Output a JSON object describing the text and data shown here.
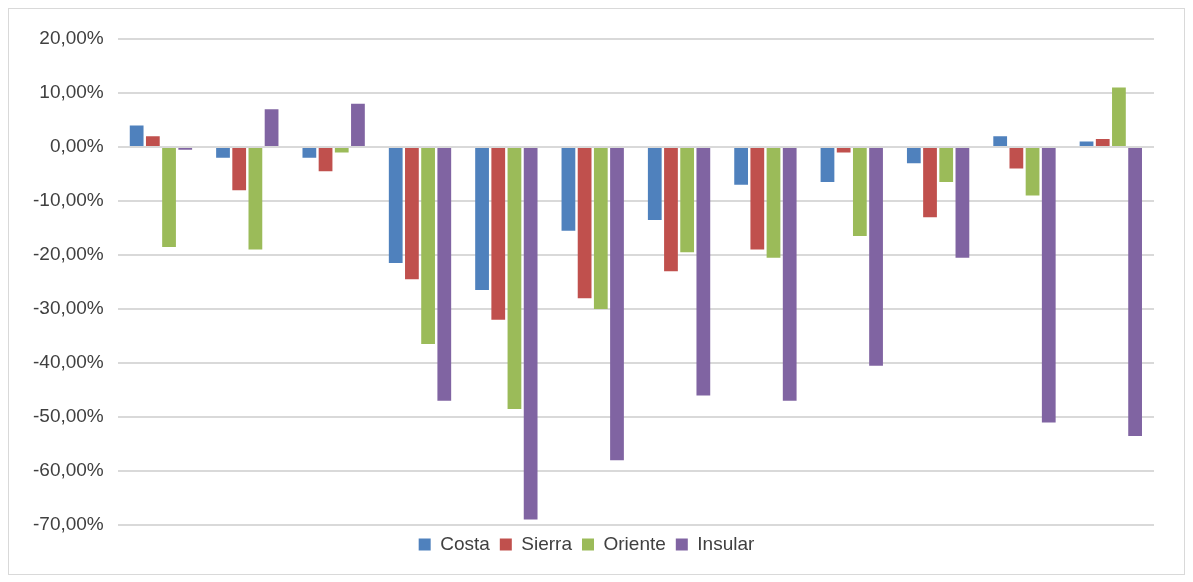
{
  "chart_data": {
    "type": "bar",
    "categories": [
      null,
      null,
      null,
      null,
      null,
      null,
      null,
      null,
      null,
      null,
      null,
      null
    ],
    "series": [
      {
        "name": "Costa",
        "color": "#4f81bd",
        "values": [
          4,
          -2,
          -2,
          -21.5,
          -26.5,
          -15.5,
          -13.5,
          -7,
          -6.5,
          -3,
          2,
          1
        ]
      },
      {
        "name": "Sierra",
        "color": "#c0504d",
        "values": [
          2,
          -8,
          -4.5,
          -24.5,
          -32,
          -28,
          -23,
          -19,
          -1,
          -13,
          -4,
          1.5
        ]
      },
      {
        "name": "Oriente",
        "color": "#9bbb59",
        "values": [
          -18.5,
          -19,
          -1,
          -36.5,
          -48.5,
          -30,
          -19.5,
          -20.5,
          -16.5,
          -6.5,
          -9,
          11
        ]
      },
      {
        "name": "Insular",
        "color": "#8064a2",
        "values": [
          -0.5,
          7,
          8,
          -47,
          -69,
          -58,
          -46,
          -47,
          -40.5,
          -20.5,
          -51,
          -53.5
        ]
      }
    ],
    "ylim": [
      -70,
      20
    ],
    "yticks": [
      {
        "value": 20,
        "label": "20,00%"
      },
      {
        "value": 10,
        "label": "10,00%"
      },
      {
        "value": 0,
        "label": "0,00%"
      },
      {
        "value": -10,
        "label": "-10,00%"
      },
      {
        "value": -20,
        "label": "-20,00%"
      },
      {
        "value": -30,
        "label": "-30,00%"
      },
      {
        "value": -40,
        "label": "-40,00%"
      },
      {
        "value": -50,
        "label": "-50,00%"
      },
      {
        "value": -60,
        "label": "-60,00%"
      },
      {
        "value": -70,
        "label": "-70,00%"
      }
    ],
    "grid": "y",
    "legend": "bottom"
  }
}
